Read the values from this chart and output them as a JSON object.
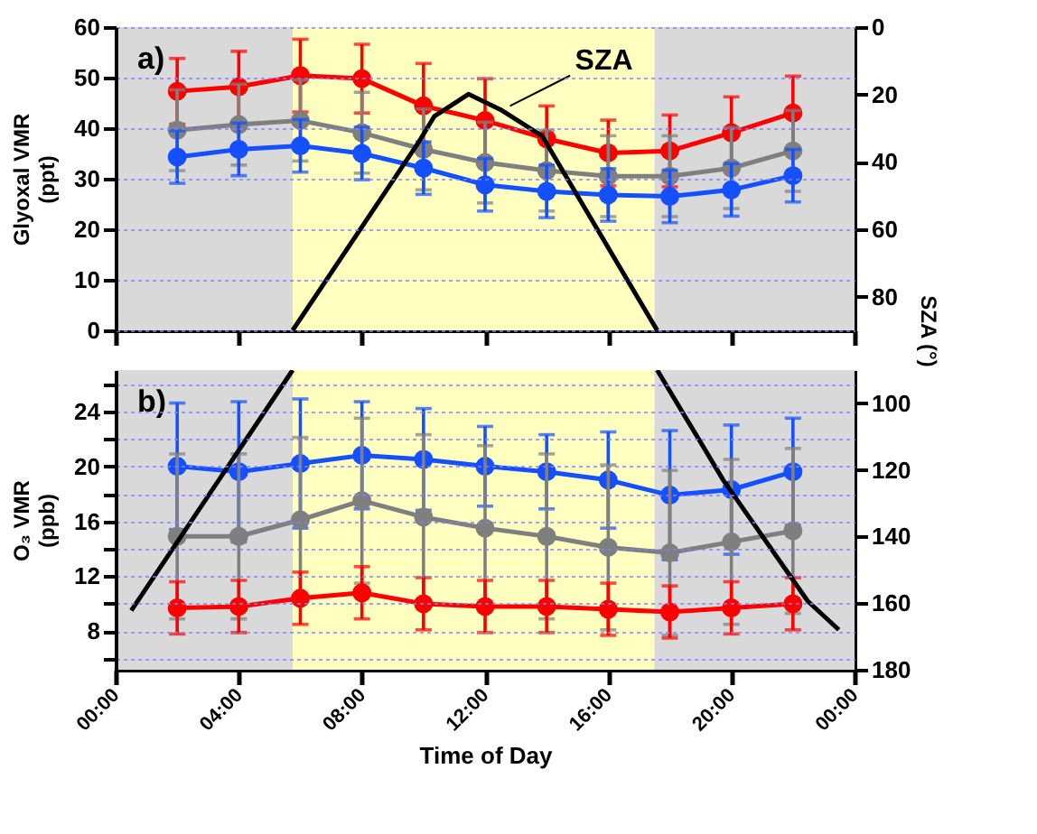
{
  "chart_data": [
    {
      "type": "line",
      "x": [
        2,
        4,
        6,
        8,
        10,
        12,
        14,
        16,
        18,
        20,
        22
      ],
      "xlim": [
        0,
        24
      ],
      "xticks": [
        0,
        4,
        8,
        12,
        16,
        20,
        24
      ],
      "tick_labels": "y",
      "ylabel": "Glyoxal VMR (ppt)",
      "y2label": "SZA (°)",
      "ylim": [
        0,
        60
      ],
      "yticks": [
        0,
        10,
        20,
        30,
        40,
        50,
        60
      ],
      "y2lim": [
        90,
        0
      ],
      "y2ticks": [
        0,
        20,
        40,
        60,
        80
      ],
      "grid": "y",
      "marker": "circle",
      "line_style": "solid",
      "annotations": [
        "a)"
      ],
      "bands": [
        {
          "axis": "x",
          "from": 0,
          "to": 5.75,
          "color": "#d9d9d9"
        },
        {
          "axis": "x",
          "from": 5.75,
          "to": 17.5,
          "color": "#ffffc0"
        },
        {
          "axis": "x",
          "from": 17.5,
          "to": 24,
          "color": "#d9d9d9"
        }
      ],
      "series": [
        {
          "color": "#ff0000",
          "values": [
            47.3,
            48.2,
            50.4,
            49.8,
            44.4,
            41.5,
            37.9,
            35.1,
            35.5,
            39.1,
            43.0
          ],
          "errors": [
            6.5,
            7,
            7.2,
            6.8,
            8.4,
            8.3,
            6.5,
            6.5,
            7.1,
            7.1,
            7.3
          ]
        },
        {
          "color": "#7f7f7f",
          "values": [
            39.6,
            40.7,
            41.5,
            39.1,
            35.8,
            33.2,
            31.6,
            30.5,
            30.5,
            32.1,
            35.5
          ],
          "errors": [
            8,
            8,
            8,
            8,
            8,
            8,
            8,
            8,
            8,
            8,
            8
          ]
        },
        {
          "color": "#1450ff",
          "values": [
            34.3,
            35.8,
            36.5,
            35.0,
            32.1,
            28.8,
            27.5,
            26.8,
            26.5,
            27.8,
            30.6
          ],
          "errors": [
            5.2,
            5.2,
            5.2,
            5.2,
            5.2,
            5.2,
            5.2,
            5.2,
            5.2,
            5.2,
            5.2
          ]
        },
        {
          "name": "SZA",
          "type": "line",
          "axis": "y2",
          "marker": "none",
          "color": "#000000",
          "x": [
            5.75,
            9.86,
            10.35,
            11.46,
            12.5,
            13.85,
            17.59
          ],
          "values": [
            90,
            33.9,
            26.5,
            19.9,
            24.5,
            32.3,
            90
          ]
        }
      ]
    },
    {
      "type": "line",
      "x": [
        2,
        4,
        6,
        8,
        10,
        12,
        14,
        16,
        18,
        20,
        22
      ],
      "xlim": [
        0,
        24
      ],
      "xticks": [
        {
          "value": 0,
          "label": "00:00"
        },
        {
          "value": 4,
          "label": "04:00"
        },
        {
          "value": 8,
          "label": "08:00"
        },
        {
          "value": 12,
          "label": "12:00"
        },
        {
          "value": 16,
          "label": "16:00"
        },
        {
          "value": 20,
          "label": "20:00"
        },
        {
          "value": 24,
          "label": "00:00"
        }
      ],
      "xlabel": "Time of Day",
      "ylabel": "O₃ VMR (ppb)",
      "ylim": [
        5.2,
        27
      ],
      "yticks": [
        {
          "value": 6,
          "label": null
        },
        8,
        {
          "value": 10,
          "label": null
        },
        12,
        {
          "value": 14,
          "label": null
        },
        16,
        {
          "value": 18,
          "label": null
        },
        20,
        {
          "value": 22,
          "label": null
        },
        24,
        {
          "value": 26,
          "label": null
        }
      ],
      "y2lim": [
        180,
        90
      ],
      "y2ticks": [
        100,
        120,
        140,
        160,
        180
      ],
      "grid": "y",
      "marker": "circle",
      "line_style": "solid",
      "annotations": [
        "b)"
      ],
      "bands": [
        {
          "axis": "x",
          "from": 0,
          "to": 5.75,
          "color": "#d9d9d9"
        },
        {
          "axis": "x",
          "from": 5.75,
          "to": 17.5,
          "color": "#ffffc0"
        },
        {
          "axis": "x",
          "from": 17.5,
          "to": 24,
          "color": "#d9d9d9"
        }
      ],
      "series": [
        {
          "color": "#1450ff",
          "values": [
            20.0,
            19.6,
            20.2,
            20.8,
            20.5,
            20.0,
            19.6,
            19.0,
            17.9,
            18.3,
            19.6
          ],
          "errors": [
            4.6,
            5.1,
            4.7,
            3.9,
            3.7,
            2.9,
            2.7,
            3.5,
            4.7,
            4.7,
            3.9
          ]
        },
        {
          "color": "#7f7f7f",
          "values": [
            14.9,
            14.9,
            16.1,
            17.5,
            16.3,
            15.5,
            14.9,
            14.1,
            13.7,
            14.5,
            15.3
          ],
          "errors": [
            6,
            6,
            6,
            6,
            6,
            6,
            6,
            6,
            6,
            6,
            6
          ]
        },
        {
          "color": "#ff0000",
          "values": [
            9.7,
            9.8,
            10.4,
            10.8,
            10.0,
            9.8,
            9.8,
            9.6,
            9.4,
            9.7,
            10.0
          ],
          "errors": [
            1.9,
            1.9,
            1.9,
            1.9,
            1.9,
            1.9,
            1.9,
            1.9,
            1.9,
            1.9,
            1.9
          ]
        },
        {
          "type": "line",
          "axis": "y2",
          "marker": "none",
          "color": "#000000",
          "x": [
            0.51,
            5.75,
            null,
            17.59,
            19.74,
            22.48,
            23.49
          ],
          "values": [
            162.2,
            90,
            null,
            90,
            123.1,
            159.4,
            168.0
          ]
        }
      ]
    }
  ]
}
